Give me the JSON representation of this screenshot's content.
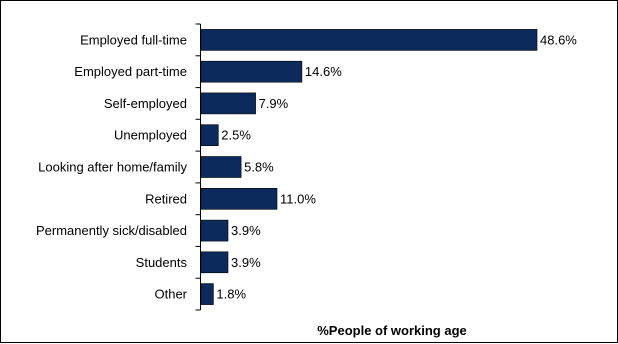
{
  "chart_data": {
    "type": "bar",
    "orientation": "horizontal",
    "title": "",
    "xlabel": "%People of working age",
    "ylabel": "",
    "categories": [
      "Employed full-time",
      "Employed part-time",
      "Self-employed",
      "Unemployed",
      "Looking after home/family",
      "Retired",
      "Permanently sick/disabled",
      "Students",
      "Other"
    ],
    "values": [
      48.6,
      14.6,
      7.9,
      2.5,
      5.8,
      11.0,
      3.9,
      3.9,
      1.8
    ],
    "value_labels": [
      "48.6%",
      "14.6%",
      "7.9%",
      "2.5%",
      "5.8%",
      "11.0%",
      "3.9%",
      "3.9%",
      "1.8%"
    ],
    "xlim": [
      0,
      50
    ],
    "grid": false,
    "legend": "none",
    "bar_color": "#0d2a5c"
  }
}
